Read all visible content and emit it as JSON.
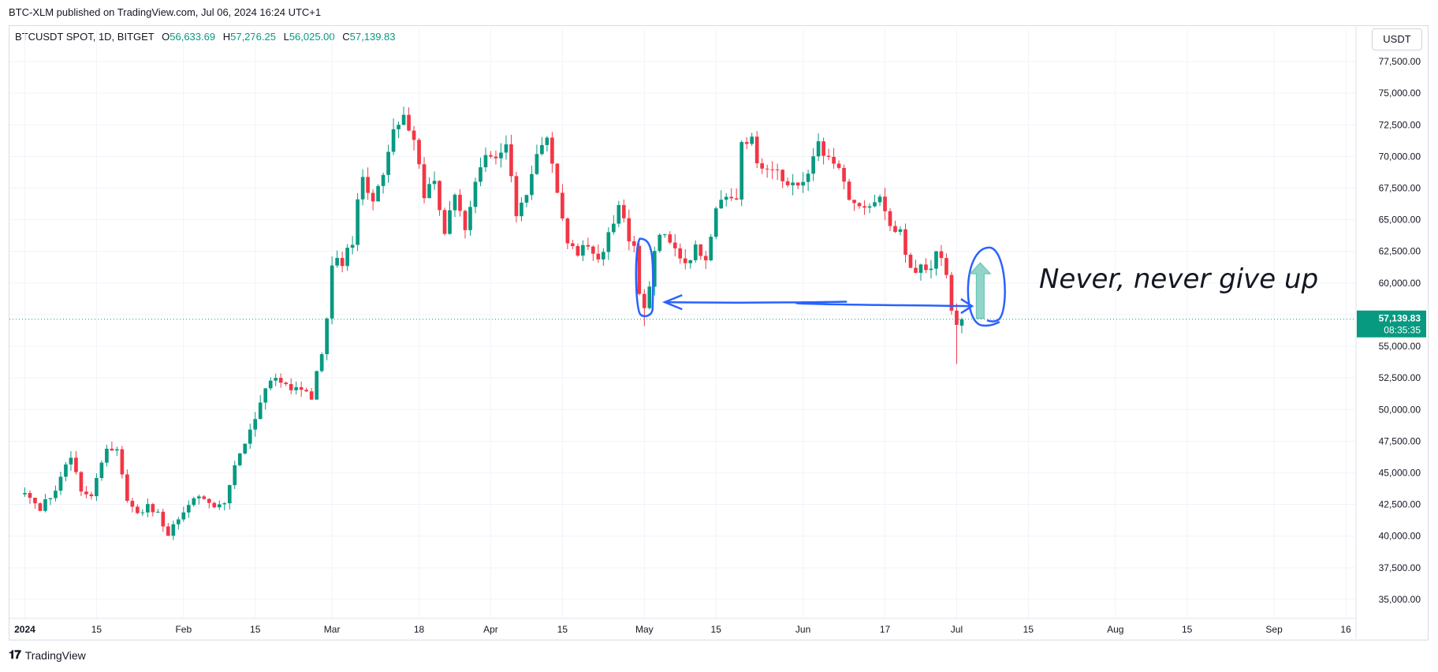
{
  "header": {
    "published": "BTC-XLM published on TradingView.com, Jul 06, 2024 16:24 UTC+1"
  },
  "legend": {
    "symbol": "BTCUSDT SPOT, 1D, BITGET",
    "open_label": "O",
    "open": "56,633.69",
    "high_label": "H",
    "high": "57,276.25",
    "low_label": "L",
    "low": "56,025.00",
    "close_label": "C",
    "close": "57,139.83"
  },
  "currency_button": "USDT",
  "footer": {
    "logo_icon": "tradingview-logo-icon",
    "brand": "TradingView"
  },
  "colors": {
    "up": "#089981",
    "down": "#f23645",
    "annotation": "#2962ff",
    "arrow": "#7ecdc0",
    "grid": "#f0f3fa"
  },
  "chart_data": {
    "type": "candlestick",
    "ylim": [
      33500,
      78500
    ],
    "y_ticks": [
      {
        "value": 35000,
        "label": "35,000.00"
      },
      {
        "value": 37500,
        "label": "37,500.00"
      },
      {
        "value": 40000,
        "label": "40,000.00"
      },
      {
        "value": 42500,
        "label": "42,500.00"
      },
      {
        "value": 45000,
        "label": "45,000.00"
      },
      {
        "value": 47500,
        "label": "47,500.00"
      },
      {
        "value": 50000,
        "label": "50,000.00"
      },
      {
        "value": 52500,
        "label": "52,500.00"
      },
      {
        "value": 55000,
        "label": "55,000.00"
      },
      {
        "value": 57500,
        "label": "57,500.00"
      },
      {
        "value": 60000,
        "label": "60,000.00"
      },
      {
        "value": 62500,
        "label": "62,500.00"
      },
      {
        "value": 65000,
        "label": "65,000.00"
      },
      {
        "value": 67500,
        "label": "67,500.00"
      },
      {
        "value": 70000,
        "label": "70,000.00"
      },
      {
        "value": 72500,
        "label": "72,500.00"
      },
      {
        "value": 75000,
        "label": "75,000.00"
      },
      {
        "value": 77500,
        "label": "77,500.00"
      }
    ],
    "x_range_days": [
      -3,
      260
    ],
    "x_ticks": [
      {
        "day": 0,
        "label": "2024",
        "bold": true
      },
      {
        "day": 14,
        "label": "15"
      },
      {
        "day": 31,
        "label": "Feb"
      },
      {
        "day": 45,
        "label": "15"
      },
      {
        "day": 60,
        "label": "Mar"
      },
      {
        "day": 77,
        "label": "18"
      },
      {
        "day": 91,
        "label": "Apr"
      },
      {
        "day": 105,
        "label": "15"
      },
      {
        "day": 121,
        "label": "May"
      },
      {
        "day": 135,
        "label": "15"
      },
      {
        "day": 152,
        "label": "Jun"
      },
      {
        "day": 168,
        "label": "17"
      },
      {
        "day": 182,
        "label": "Jul"
      },
      {
        "day": 196,
        "label": "15"
      },
      {
        "day": 213,
        "label": "Aug"
      },
      {
        "day": 227,
        "label": "15"
      },
      {
        "day": 244,
        "label": "Sep"
      },
      {
        "day": 258,
        "label": "16"
      }
    ],
    "last_price": {
      "value": 57139.83,
      "label": "57,139.83",
      "countdown": "08:35:35"
    },
    "annotation": {
      "text": "Never, never give up",
      "support_level": 58300,
      "box_may": {
        "day_from": 119.5,
        "day_to": 122,
        "low": 57500,
        "high": 63500
      },
      "arrow_from_day": 125,
      "arrow_to_day": 185,
      "circle_jul": {
        "day": 187,
        "low": 56800,
        "high": 62800
      },
      "up_arrow": {
        "day": 186.6,
        "from": 57200,
        "to": 61600
      }
    },
    "anchors": [
      [
        0,
        43300
      ],
      [
        3,
        42200
      ],
      [
        6,
        43600
      ],
      [
        9,
        46300
      ],
      [
        11,
        43400
      ],
      [
        13,
        43000
      ],
      [
        16,
        47000
      ],
      [
        18,
        46800
      ],
      [
        20,
        43000
      ],
      [
        22,
        41700
      ],
      [
        24,
        42300
      ],
      [
        26,
        41800
      ],
      [
        28,
        39900
      ],
      [
        30,
        41500
      ],
      [
        33,
        42900
      ],
      [
        35,
        43100
      ],
      [
        37,
        42300
      ],
      [
        39,
        42700
      ],
      [
        41,
        45600
      ],
      [
        43,
        47500
      ],
      [
        45,
        49500
      ],
      [
        47,
        51900
      ],
      [
        49,
        52200
      ],
      [
        52,
        51600
      ],
      [
        54,
        51800
      ],
      [
        56,
        51000
      ],
      [
        58,
        54500
      ],
      [
        59,
        57000
      ],
      [
        60,
        61500
      ],
      [
        61,
        62300
      ],
      [
        62,
        61300
      ],
      [
        63,
        62800
      ],
      [
        64,
        63300
      ],
      [
        65,
        66900
      ],
      [
        66,
        68200
      ],
      [
        68,
        66800
      ],
      [
        70,
        68600
      ],
      [
        72,
        72200
      ],
      [
        74,
        73200
      ],
      [
        76,
        71300
      ],
      [
        78,
        66900
      ],
      [
        80,
        68100
      ],
      [
        82,
        64100
      ],
      [
        84,
        66900
      ],
      [
        86,
        64200
      ],
      [
        88,
        67800
      ],
      [
        90,
        70000
      ],
      [
        92,
        69600
      ],
      [
        94,
        70700
      ],
      [
        96,
        65400
      ],
      [
        98,
        67200
      ],
      [
        100,
        70500
      ],
      [
        102,
        71400
      ],
      [
        104,
        66800
      ],
      [
        106,
        63500
      ],
      [
        108,
        62300
      ],
      [
        110,
        63100
      ],
      [
        112,
        61500
      ],
      [
        114,
        63700
      ],
      [
        116,
        66400
      ],
      [
        118,
        63200
      ],
      [
        119,
        62700
      ],
      [
        120,
        59000
      ],
      [
        121,
        58200
      ],
      [
        122,
        59600
      ],
      [
        123,
        62900
      ],
      [
        124,
        63800
      ],
      [
        125,
        64000
      ],
      [
        127,
        62900
      ],
      [
        129,
        61200
      ],
      [
        131,
        63000
      ],
      [
        133,
        61500
      ],
      [
        135,
        66200
      ],
      [
        137,
        67000
      ],
      [
        139,
        66900
      ],
      [
        140,
        71400
      ],
      [
        142,
        71400
      ],
      [
        143,
        69300
      ],
      [
        145,
        69300
      ],
      [
        147,
        68600
      ],
      [
        149,
        67800
      ],
      [
        151,
        67600
      ],
      [
        153,
        68800
      ],
      [
        155,
        71000
      ],
      [
        157,
        69700
      ],
      [
        159,
        69300
      ],
      [
        161,
        66600
      ],
      [
        163,
        66200
      ],
      [
        165,
        65900
      ],
      [
        167,
        66500
      ],
      [
        169,
        64700
      ],
      [
        171,
        64000
      ],
      [
        172,
        62600
      ],
      [
        173,
        60900
      ],
      [
        175,
        61300
      ],
      [
        177,
        60800
      ],
      [
        178,
        62600
      ],
      [
        179,
        62000
      ],
      [
        180,
        60300
      ],
      [
        181,
        57800
      ],
      [
        182,
        56600
      ],
      [
        183,
        57139.83
      ]
    ]
  }
}
